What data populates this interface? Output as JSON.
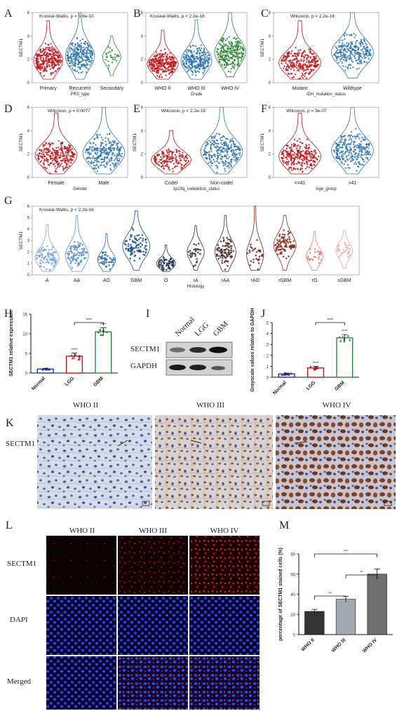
{
  "colors": {
    "red": "#c0161c",
    "blue": "#2e77b1",
    "green": "#2f8a37",
    "purple": "#6b3fa0",
    "hist": [
      "#7fa7d8",
      "#5891cf",
      "#2c6da8",
      "#164f86",
      "#1e2e52",
      "#3a2d3c",
      "#4f2c26",
      "#6e2418",
      "#8a2b1c",
      "#e08077",
      "#e8a39c"
    ]
  },
  "panels": {
    "A": {
      "label": "A",
      "stat": "Kruskal-Wallis, p = 5.6e-10",
      "ylabel": "SECTM1",
      "xlabel": "PRS_type",
      "cats": [
        "Primary",
        "Recurrent",
        "Secondary"
      ]
    },
    "B": {
      "label": "B",
      "stat": "Kruskal-Wallis, p < 2.2e-16",
      "xlabel": "Grade",
      "cats": [
        "WHO II",
        "WHO III",
        "WHO IV"
      ]
    },
    "C": {
      "label": "C",
      "stat": "Wilcoxon, p < 2.2e-16",
      "ylabel": "SECTM1",
      "xlabel": "IDH_mutation_status",
      "cats": [
        "Mutant",
        "Wildtype"
      ]
    },
    "D": {
      "label": "D",
      "stat": "Wilcoxon, p = 0.0077",
      "ylabel": "SECTM1",
      "xlabel": "Gender",
      "cats": [
        "Female",
        "Male"
      ]
    },
    "E": {
      "label": "E",
      "stat": "Wilcoxon, p < 2.2e-16",
      "ylabel": "SECTM1",
      "xlabel": "1p19q_codeletion_status",
      "cats": [
        "Codel",
        "Non-codel"
      ]
    },
    "F": {
      "label": "F",
      "stat": "Wilcoxon, p = 3e-07",
      "ylabel": "SECTM1",
      "xlabel": "Age_group",
      "cats": [
        "<=41",
        ">41"
      ]
    },
    "G": {
      "label": "G",
      "stat": "Kruskal-Wallis, p < 2.2e-16",
      "ylabel": "SECTM1",
      "xlabel": "Histology",
      "cats": [
        "A",
        "AA",
        "AO",
        "GBM",
        "O",
        "rA",
        "rAA",
        "rAO",
        "rGBM",
        "rO",
        "sGBM"
      ]
    },
    "H": {
      "label": "H",
      "ylabel": "SECTM1 relative expression",
      "cats": [
        "Normal",
        "LGG",
        "GBM"
      ],
      "sig_bracket": "****",
      "sig_each": [
        "",
        "****",
        "****"
      ]
    },
    "I": {
      "label": "I",
      "lanes": [
        "Normal",
        "LGG",
        "GBM"
      ],
      "rows": [
        "SECTM1",
        "GAPDH"
      ]
    },
    "J": {
      "label": "J",
      "ylabel": "Grayscale values relative to GAPDH",
      "cats": [
        "Normal",
        "LGG",
        "GBM"
      ],
      "sig_bracket": "****",
      "sig_each": [
        "",
        "****",
        "****"
      ]
    },
    "K": {
      "label": "K",
      "cols": [
        "WHO II",
        "WHO III",
        "WHO IV"
      ],
      "row": "SECTM1"
    },
    "L": {
      "label": "L",
      "cols": [
        "WHO II",
        "WHO III",
        "WHO IV"
      ],
      "rows": [
        "SECTM1",
        "DAPI",
        "Merged"
      ]
    },
    "M": {
      "label": "M",
      "ylabel": "percentage of SECTM1 stained cells (%)",
      "cats": [
        "WHO II",
        "WHO III",
        "WHO IV"
      ],
      "sig": [
        "**",
        "**",
        "***"
      ]
    }
  },
  "chart_data": [
    {
      "panel": "A",
      "type": "scatter",
      "title": "Kruskal-Wallis, p = 5.6e-10",
      "xlabel": "PRS_type",
      "ylabel": "SECTM1",
      "categories": [
        "Primary",
        "Recurrent",
        "Secondary"
      ],
      "ylim": [
        0,
        6
      ],
      "yticks": [
        0,
        2,
        4,
        6
      ],
      "series": [
        {
          "name": "Primary",
          "median": 1.9,
          "min": 0.3,
          "max": 5.3,
          "n": 420
        },
        {
          "name": "Recurrent",
          "median": 2.3,
          "min": 0.3,
          "max": 6.0,
          "n": 320
        },
        {
          "name": "Secondary",
          "median": 2.2,
          "min": 0.6,
          "max": 4.0,
          "n": 30
        }
      ]
    },
    {
      "panel": "B",
      "type": "scatter",
      "title": "Kruskal-Wallis, p < 2.2e-16",
      "xlabel": "Grade",
      "ylabel": "",
      "categories": [
        "WHO II",
        "WHO III",
        "WHO IV"
      ],
      "ylim": [
        0,
        6
      ],
      "yticks": [
        0,
        2,
        4,
        6
      ],
      "series": [
        {
          "name": "WHO II",
          "median": 1.6,
          "min": 0.3,
          "max": 4.5,
          "n": 260
        },
        {
          "name": "WHO III",
          "median": 1.9,
          "min": 0.3,
          "max": 5.4,
          "n": 260
        },
        {
          "name": "WHO IV",
          "median": 2.6,
          "min": 0.5,
          "max": 6.0,
          "n": 280
        }
      ]
    },
    {
      "panel": "C",
      "type": "scatter",
      "title": "Wilcoxon, p < 2.2e-16",
      "xlabel": "IDH_mutation_status",
      "ylabel": "SECTM1",
      "categories": [
        "Mutant",
        "Wildtype"
      ],
      "ylim": [
        0,
        6
      ],
      "yticks": [
        0,
        2,
        4,
        6
      ],
      "series": [
        {
          "name": "Mutant",
          "median": 1.7,
          "min": 0.3,
          "max": 5.3,
          "n": 430
        },
        {
          "name": "Wildtype",
          "median": 2.6,
          "min": 0.4,
          "max": 6.0,
          "n": 330
        }
      ]
    },
    {
      "panel": "D",
      "type": "scatter",
      "title": "Wilcoxon, p = 0.0077",
      "xlabel": "Gender",
      "ylabel": "SECTM1",
      "categories": [
        "Female",
        "Male"
      ],
      "ylim": [
        0,
        6
      ],
      "yticks": [
        0,
        2,
        4,
        6
      ],
      "series": [
        {
          "name": "Female",
          "median": 1.9,
          "min": 0.3,
          "max": 5.5,
          "n": 320
        },
        {
          "name": "Male",
          "median": 2.1,
          "min": 0.3,
          "max": 6.0,
          "n": 420
        }
      ]
    },
    {
      "panel": "E",
      "type": "scatter",
      "title": "Wilcoxon, p < 2.2e-16",
      "xlabel": "1p19q_codeletion_status",
      "ylabel": "SECTM1",
      "categories": [
        "Codel",
        "Non-codel"
      ],
      "ylim": [
        0,
        6
      ],
      "yticks": [
        0,
        2,
        4,
        6
      ],
      "series": [
        {
          "name": "Codel",
          "median": 1.5,
          "min": 0.3,
          "max": 4.0,
          "n": 160
        },
        {
          "name": "Non-codel",
          "median": 2.2,
          "min": 0.3,
          "max": 6.0,
          "n": 560
        }
      ]
    },
    {
      "panel": "F",
      "type": "scatter",
      "title": "Wilcoxon, p = 3e-07",
      "xlabel": "Age_group",
      "ylabel": "SECTM1",
      "categories": [
        "<=41",
        ">41"
      ],
      "ylim": [
        0,
        6
      ],
      "yticks": [
        0,
        2,
        4,
        6
      ],
      "series": [
        {
          "name": "<=41",
          "median": 1.8,
          "min": 0.3,
          "max": 5.5,
          "n": 400
        },
        {
          "name": ">41",
          "median": 2.3,
          "min": 0.3,
          "max": 6.0,
          "n": 380
        }
      ]
    },
    {
      "panel": "G",
      "type": "scatter",
      "title": "Kruskal-Wallis, p < 2.2e-16",
      "xlabel": "Histology",
      "ylabel": "SECTM1",
      "categories": [
        "A",
        "AA",
        "AO",
        "GBM",
        "O",
        "rA",
        "rAA",
        "rAO",
        "rGBM",
        "rO",
        "sGBM"
      ],
      "ylim": [
        0,
        6
      ],
      "yticks": [
        0,
        1,
        2,
        3,
        4,
        5,
        6
      ],
      "series": [
        {
          "name": "A",
          "median": 1.5,
          "min": 0.3,
          "max": 4.4,
          "n": 130
        },
        {
          "name": "AA",
          "median": 1.7,
          "min": 0.3,
          "max": 5.2,
          "n": 120
        },
        {
          "name": "AO",
          "median": 1.3,
          "min": 0.3,
          "max": 3.6,
          "n": 45
        },
        {
          "name": "GBM",
          "median": 2.5,
          "min": 0.4,
          "max": 5.6,
          "n": 200
        },
        {
          "name": "O",
          "median": 1.0,
          "min": 0.3,
          "max": 2.6,
          "n": 60
        },
        {
          "name": "rA",
          "median": 2.0,
          "min": 0.4,
          "max": 4.3,
          "n": 30
        },
        {
          "name": "rAA",
          "median": 2.0,
          "min": 0.3,
          "max": 5.2,
          "n": 90
        },
        {
          "name": "rAO",
          "median": 1.8,
          "min": 0.4,
          "max": 6.0,
          "n": 30
        },
        {
          "name": "rGBM",
          "median": 2.6,
          "min": 0.4,
          "max": 5.2,
          "n": 110
        },
        {
          "name": "rO",
          "median": 1.6,
          "min": 0.4,
          "max": 3.8,
          "n": 25
        },
        {
          "name": "sGBM",
          "median": 2.1,
          "min": 0.6,
          "max": 3.9,
          "n": 25
        }
      ]
    },
    {
      "panel": "H",
      "type": "bar",
      "xlabel": "",
      "ylabel": "SECTM1 relative expression",
      "categories": [
        "Normal",
        "LGG",
        "GBM"
      ],
      "values": [
        1.0,
        4.3,
        10.5
      ],
      "errors": [
        0.2,
        0.8,
        1.0
      ],
      "ylim": [
        0,
        15
      ],
      "yticks": [
        0,
        5,
        10,
        15
      ]
    },
    {
      "panel": "J",
      "type": "bar",
      "xlabel": "",
      "ylabel": "Grayscale values relative to GAPDH",
      "categories": [
        "Normal",
        "LGG",
        "GBM"
      ],
      "values": [
        0.3,
        0.85,
        3.6
      ],
      "errors": [
        0.08,
        0.15,
        0.3
      ],
      "ylim": [
        0,
        5
      ],
      "yticks": [
        0,
        1,
        2,
        3,
        4,
        5
      ]
    },
    {
      "panel": "M",
      "type": "bar",
      "xlabel": "",
      "ylabel": "percentage of SECTM1 stained cells (%)",
      "categories": [
        "WHO II",
        "WHO III",
        "WHO IV"
      ],
      "values": [
        23,
        35,
        60
      ],
      "errors": [
        2,
        3,
        5
      ],
      "ylim": [
        0,
        80
      ],
      "yticks": [
        0,
        20,
        40,
        60,
        80
      ]
    }
  ]
}
